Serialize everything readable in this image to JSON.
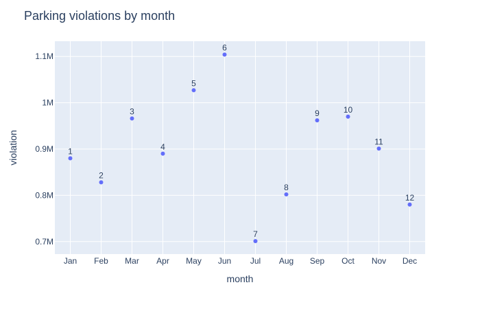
{
  "chart_data": {
    "type": "scatter",
    "title": "Parking violations by month",
    "xlabel": "month",
    "ylabel": "violation",
    "categories": [
      "Jan",
      "Feb",
      "Mar",
      "Apr",
      "May",
      "Jun",
      "Jul",
      "Aug",
      "Sep",
      "Oct",
      "Nov",
      "Dec"
    ],
    "series": [
      {
        "values": [
          880000,
          828000,
          966000,
          890000,
          1027000,
          1104000,
          701000,
          802000,
          962000,
          970000,
          901000,
          780000
        ],
        "point_labels": [
          "1",
          "2",
          "3",
          "4",
          "5",
          "6",
          "7",
          "8",
          "9",
          "10",
          "11",
          "12"
        ]
      }
    ],
    "ylim": [
      673000,
      1133000
    ],
    "yticks": [
      700000,
      800000,
      900000,
      1000000,
      1100000
    ],
    "ytick_labels": [
      "0.7M",
      "0.8M",
      "0.9M",
      "1M",
      "1.1M"
    ],
    "grid": true,
    "colors": {
      "marker": "#636efa",
      "plot_bg": "#e5ecf6",
      "grid": "#ffffff",
      "text": "#2a3f5f"
    }
  }
}
